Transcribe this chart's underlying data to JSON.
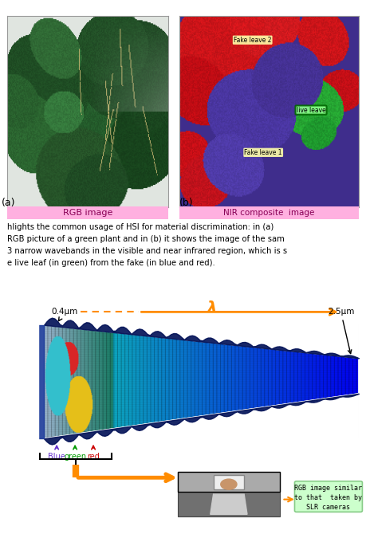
{
  "bg_color": "#ffffff",
  "top_left_label": "(a)",
  "top_right_label": "(b)",
  "rgb_caption": "RGB image",
  "nir_caption": "NIR composite  image",
  "body_text_lines": [
    "hlights the common usage of HSI for material discrimination: in (a)",
    "RGB picture of a green plant and in (b) it shows the image of the sam",
    "3 narrow wavebands in the visible and near infrared region, which is s",
    "e live leaf (in green) from the fake (in blue and red)."
  ],
  "lambda_left": "0.4μm",
  "lambda_right": "2.5μm",
  "lambda_symbol": "λ",
  "blue_label": "Blue",
  "green_label": "green",
  "red_label": "red",
  "rgb_box_text": "RGB image similar\nto that  taken by\nSLR cameras",
  "arrow_color": "#FF8C00",
  "blue_color": "#6633CC",
  "green_color": "#009900",
  "red_color": "#CC0000",
  "rgb_box_bg": "#CCFFCC",
  "rgb_box_border": "#88CC88",
  "fake_leave_box": "#FFFFAA",
  "live_leave_box_bg": "#88FF88",
  "live_leave_box_border": "#006600"
}
